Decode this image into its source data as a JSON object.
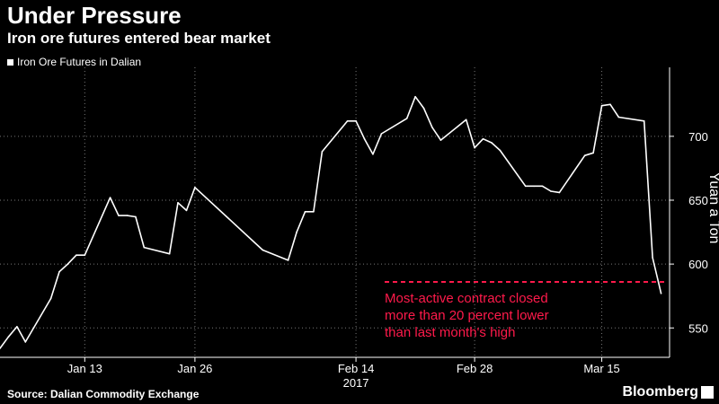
{
  "header": {
    "title": "Under Pressure",
    "subtitle": "Iron ore futures entered bear market"
  },
  "footer": {
    "source": "Source: Dalian Commodity Exchange",
    "brand": "Bloomberg"
  },
  "colors": {
    "background": "#000000",
    "line": "#ffffff",
    "reference_line": "#ff1a4b",
    "grid": "#777777"
  },
  "chart_data": {
    "type": "line",
    "title": "Under Pressure",
    "subtitle": "Iron ore futures entered bear market",
    "ylabel": "Yuan a Ton",
    "xlabel": "",
    "year_label": "2017",
    "legend": {
      "entries": [
        "Iron Ore Futures in Dalian"
      ],
      "placement": "top-left"
    },
    "grid": true,
    "ylim": [
      527,
      754
    ],
    "yticks": [
      550,
      600,
      650,
      700
    ],
    "xticks": [
      {
        "label": "Jan 13",
        "date": "2017-01-13"
      },
      {
        "label": "Jan 26",
        "date": "2017-01-26"
      },
      {
        "label": "Feb 14",
        "date": "2017-02-14"
      },
      {
        "label": "Feb 28",
        "date": "2017-02-28"
      },
      {
        "label": "Mar 15",
        "date": "2017-03-15"
      }
    ],
    "xlim": [
      "2017-01-03",
      "2017-03-23"
    ],
    "reference_line": {
      "y": 586
    },
    "annotation": "Most-active contract closed\nmore than 20 percent lower\nthan last month's high",
    "series": [
      {
        "name": "Iron Ore Futures in Dalian",
        "points": [
          [
            "2017-01-03",
            534
          ],
          [
            "2017-01-04",
            543
          ],
          [
            "2017-01-05",
            551
          ],
          [
            "2017-01-06",
            539
          ],
          [
            "2017-01-09",
            573
          ],
          [
            "2017-01-10",
            594
          ],
          [
            "2017-01-11",
            600
          ],
          [
            "2017-01-12",
            607
          ],
          [
            "2017-01-13",
            607
          ],
          [
            "2017-01-16",
            652
          ],
          [
            "2017-01-17",
            638
          ],
          [
            "2017-01-18",
            638
          ],
          [
            "2017-01-19",
            637
          ],
          [
            "2017-01-20",
            613
          ],
          [
            "2017-01-23",
            608
          ],
          [
            "2017-01-24",
            648
          ],
          [
            "2017-01-25",
            642
          ],
          [
            "2017-01-26",
            660
          ],
          [
            "2017-02-03",
            611
          ],
          [
            "2017-02-06",
            603
          ],
          [
            "2017-02-07",
            625
          ],
          [
            "2017-02-08",
            641
          ],
          [
            "2017-02-09",
            641
          ],
          [
            "2017-02-10",
            688
          ],
          [
            "2017-02-13",
            712
          ],
          [
            "2017-02-14",
            712
          ],
          [
            "2017-02-15",
            698
          ],
          [
            "2017-02-16",
            686
          ],
          [
            "2017-02-17",
            702
          ],
          [
            "2017-02-20",
            714
          ],
          [
            "2017-02-21",
            731
          ],
          [
            "2017-02-22",
            722
          ],
          [
            "2017-02-23",
            707
          ],
          [
            "2017-02-24",
            697
          ],
          [
            "2017-02-27",
            713
          ],
          [
            "2017-02-28",
            691
          ],
          [
            "2017-03-01",
            698
          ],
          [
            "2017-03-02",
            695
          ],
          [
            "2017-03-03",
            689
          ],
          [
            "2017-03-06",
            661
          ],
          [
            "2017-03-07",
            661
          ],
          [
            "2017-03-08",
            661
          ],
          [
            "2017-03-09",
            657
          ],
          [
            "2017-03-10",
            656
          ],
          [
            "2017-03-13",
            685
          ],
          [
            "2017-03-14",
            687
          ],
          [
            "2017-03-15",
            724
          ],
          [
            "2017-03-16",
            725
          ],
          [
            "2017-03-17",
            715
          ],
          [
            "2017-03-20",
            712
          ],
          [
            "2017-03-21",
            605
          ],
          [
            "2017-03-22",
            577
          ]
        ]
      }
    ]
  }
}
